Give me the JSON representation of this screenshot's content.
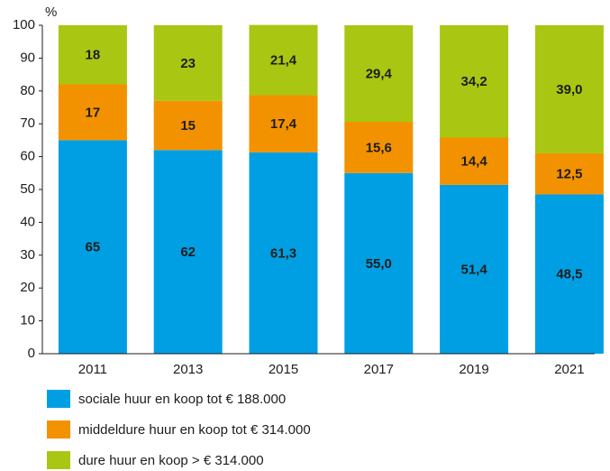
{
  "chart_data": {
    "type": "stacked_bar",
    "y_axis_label": "%",
    "categories": [
      "2011",
      "2013",
      "2015",
      "2017",
      "2019",
      "2021"
    ],
    "series": [
      {
        "name": "sociale huur en koop tot € 188.000",
        "color": "#009fe3",
        "values": [
          65,
          62,
          61.3,
          55.0,
          51.4,
          48.5
        ],
        "value_labels": [
          "65",
          "62",
          "61,3",
          "55,0",
          "51,4",
          "48,5"
        ]
      },
      {
        "name": "middeldure huur en koop tot € 314.000",
        "color": "#f39200",
        "values": [
          17,
          15,
          17.4,
          15.6,
          14.4,
          12.5
        ],
        "value_labels": [
          "17",
          "15",
          "17,4",
          "15,6",
          "14,4",
          "12,5"
        ]
      },
      {
        "name": "dure huur en koop > € 314.000",
        "color": "#a9c613",
        "values": [
          18,
          23,
          21.4,
          29.4,
          34.2,
          39.0
        ],
        "value_labels": [
          "18",
          "23",
          "21,4",
          "29,4",
          "34,2",
          "39,0"
        ]
      }
    ],
    "ylim": [
      0,
      100
    ],
    "yticks": [
      0,
      10,
      20,
      30,
      40,
      50,
      60,
      70,
      80,
      90,
      100
    ],
    "grid": false
  }
}
